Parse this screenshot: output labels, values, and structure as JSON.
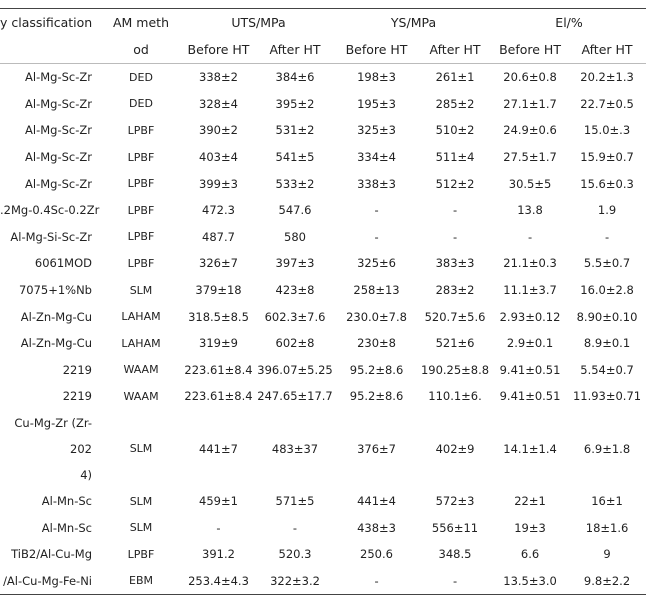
{
  "table": {
    "header": {
      "col0": "y classification",
      "col1_top": "AM meth",
      "col1_bottom": "od",
      "groups": [
        "UTS/MPa",
        "YS/MPa",
        "El/%"
      ],
      "sub": [
        "Before HT",
        "After HT",
        "Before HT",
        "After HT",
        "Before HT",
        "After HT"
      ]
    },
    "rows": [
      [
        "Al-Mg-Sc-Zr",
        "DED",
        "338±2",
        "384±6",
        "198±3",
        "261±1",
        "20.6±0.8",
        "20.2±1.3"
      ],
      [
        "Al-Mg-Sc-Zr",
        "DED",
        "328±4",
        "395±2",
        "195±3",
        "285±2",
        "27.1±1.7",
        "22.7±0.5"
      ],
      [
        "Al-Mg-Sc-Zr",
        "LPBF",
        "390±2",
        "531±2",
        "325±3",
        "510±2",
        "24.9±0.6",
        "15.0±.3"
      ],
      [
        "Al-Mg-Sc-Zr",
        "LPBF",
        "403±4",
        "541±5",
        "334±4",
        "511±4",
        "27.5±1.7",
        "15.9±0.7"
      ],
      [
        "Al-Mg-Sc-Zr",
        "LPBF",
        "399±3",
        "533±2",
        "338±3",
        "512±2",
        "30.5±5",
        "15.6±0.3"
      ],
      [
        ".2Mg-0.4Sc-0.2Zr",
        "LPBF",
        "472.3",
        "547.6",
        "-",
        "-",
        "13.8",
        "1.9"
      ],
      [
        "Al-Mg-Si-Sc-Zr",
        "LPBF",
        "487.7",
        "580",
        "-",
        "-",
        "-",
        "-"
      ],
      [
        "6061MOD",
        "LPBF",
        "326±7",
        "397±3",
        "325±6",
        "383±3",
        "21.1±0.3",
        "5.5±0.7"
      ],
      [
        "7075+1%Nb",
        "SLM",
        "379±18",
        "423±8",
        "258±13",
        "283±2",
        "11.1±3.7",
        "16.0±2.8"
      ],
      [
        "Al-Zn-Mg-Cu",
        "LAHAM",
        "318.5±8.5",
        "602.3±7.6",
        "230.0±7.8",
        "520.7±5.6",
        "2.93±0.12",
        "8.90±0.10"
      ],
      [
        "Al-Zn-Mg-Cu",
        "LAHAM",
        "319±9",
        "602±8",
        "230±8",
        "521±6",
        "2.9±0.1",
        "8.9±0.1"
      ],
      [
        "2219",
        "WAAM",
        "223.61±8.4",
        "396.07±5.25",
        "95.2±8.6",
        "190.25±8.8",
        "9.41±0.51",
        "5.54±0.7"
      ],
      [
        "2219",
        "WAAM",
        "223.61±8.4",
        "247.65±17.7",
        "95.2±8.6",
        "110.1±6.",
        "9.41±0.51",
        "11.93±0.71"
      ],
      [
        "Cu-Mg-Zr (Zr-202\n4)",
        "SLM",
        "441±7",
        "483±37",
        "376±7",
        "402±9",
        "14.1±1.4",
        "6.9±1.8"
      ],
      [
        "Al-Mn-Sc",
        "SLM",
        "459±1",
        "571±5",
        "441±4",
        "572±3",
        "22±1",
        "16±1"
      ],
      [
        "Al-Mn-Sc",
        "SLM",
        "-",
        "-",
        "438±3",
        "556±11",
        "19±3",
        "18±1.6"
      ],
      [
        "TiB2/Al-Cu-Mg",
        "LPBF",
        "391.2",
        "520.3",
        "250.6",
        "348.5",
        "6.6",
        "9"
      ],
      [
        "/Al-Cu-Mg-Fe-Ni",
        "EBM",
        "253.4±4.3",
        "322±3.2",
        "-",
        "-",
        "13.5±3.0",
        "9.8±2.2"
      ]
    ]
  }
}
